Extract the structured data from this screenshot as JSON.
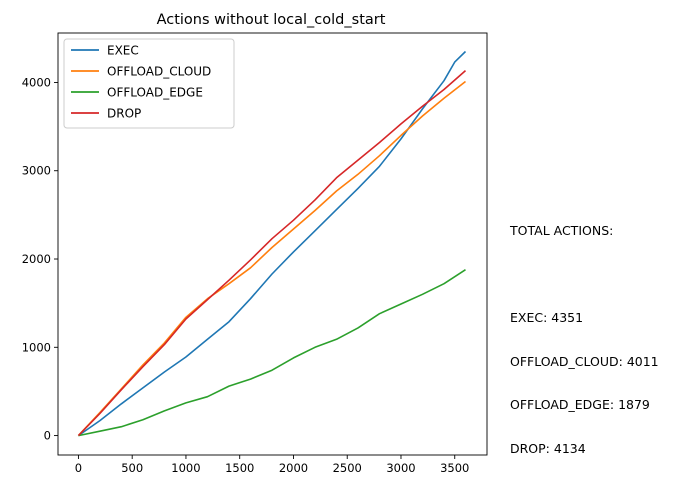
{
  "chart_data": {
    "type": "line",
    "title": "Actions without local_cold_start",
    "xlabel": "",
    "ylabel": "",
    "xlim": [
      -190,
      3800
    ],
    "ylim": [
      -220,
      4560
    ],
    "xticks": [
      0,
      500,
      1000,
      1500,
      2000,
      2500,
      3000,
      3500
    ],
    "yticks": [
      0,
      1000,
      2000,
      3000,
      4000
    ],
    "grid": false,
    "legend_position": "top-left",
    "series": [
      {
        "name": "EXEC",
        "color": "#1f77b4",
        "x": [
          0,
          200,
          400,
          600,
          800,
          1000,
          1200,
          1400,
          1600,
          1800,
          2000,
          2200,
          2400,
          2600,
          2800,
          3000,
          3200,
          3400,
          3500,
          3600
        ],
        "y": [
          0,
          170,
          360,
          540,
          720,
          890,
          1090,
          1290,
          1550,
          1830,
          2080,
          2320,
          2560,
          2800,
          3050,
          3360,
          3700,
          4020,
          4230,
          4351
        ]
      },
      {
        "name": "OFFLOAD_CLOUD",
        "color": "#ff7f0e",
        "x": [
          0,
          200,
          400,
          600,
          800,
          1000,
          1200,
          1400,
          1600,
          1800,
          2000,
          2200,
          2400,
          2600,
          2800,
          3000,
          3200,
          3400,
          3600
        ],
        "y": [
          0,
          260,
          530,
          800,
          1050,
          1340,
          1550,
          1720,
          1900,
          2130,
          2340,
          2550,
          2770,
          2960,
          3170,
          3400,
          3620,
          3820,
          4011
        ]
      },
      {
        "name": "OFFLOAD_EDGE",
        "color": "#2ca02c",
        "x": [
          0,
          200,
          400,
          600,
          800,
          1000,
          1200,
          1400,
          1600,
          1800,
          2000,
          2200,
          2400,
          2600,
          2800,
          3000,
          3200,
          3400,
          3600
        ],
        "y": [
          0,
          50,
          100,
          180,
          280,
          370,
          440,
          560,
          640,
          740,
          880,
          1000,
          1090,
          1220,
          1380,
          1490,
          1600,
          1720,
          1879
        ]
      },
      {
        "name": "DROP",
        "color": "#d62728",
        "x": [
          0,
          200,
          400,
          600,
          800,
          1000,
          1200,
          1400,
          1600,
          1800,
          2000,
          2200,
          2400,
          2600,
          2800,
          3000,
          3200,
          3400,
          3600
        ],
        "y": [
          0,
          250,
          520,
          780,
          1030,
          1320,
          1540,
          1760,
          1990,
          2230,
          2440,
          2670,
          2920,
          3120,
          3320,
          3530,
          3730,
          3920,
          4134
        ]
      }
    ]
  },
  "side_note": {
    "heading": "TOTAL ACTIONS:",
    "lines": [
      "EXEC: 4351",
      "OFFLOAD_CLOUD: 4011",
      "OFFLOAD_EDGE: 1879",
      "DROP: 4134"
    ]
  }
}
